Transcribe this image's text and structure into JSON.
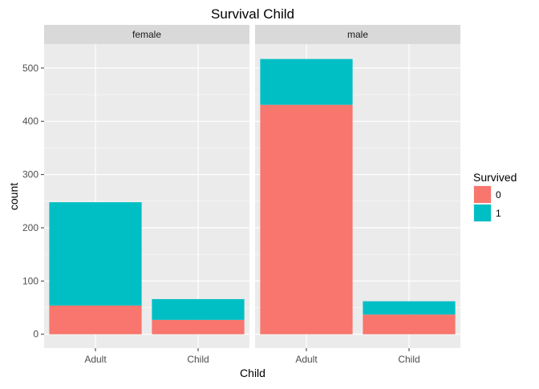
{
  "chart_data": {
    "type": "bar",
    "stacked": true,
    "faceted": true,
    "title": "Survival Child",
    "xlabel": "Child",
    "ylabel": "count",
    "ylim": [
      -26,
      545
    ],
    "yticks": [
      0,
      100,
      200,
      300,
      400,
      500
    ],
    "grid": true,
    "legend": {
      "title": "Survived",
      "position": "right",
      "entries": [
        {
          "label": "0",
          "color": "#F8766D"
        },
        {
          "label": "1",
          "color": "#00BFC4"
        }
      ]
    },
    "categories": [
      "Adult",
      "Child"
    ],
    "facets": [
      {
        "name": "female",
        "series": [
          {
            "name": "0",
            "color": "#F8766D",
            "values": [
              54,
              27
            ]
          },
          {
            "name": "1",
            "color": "#00BFC4",
            "values": [
              194,
              39
            ]
          }
        ]
      },
      {
        "name": "male",
        "series": [
          {
            "name": "0",
            "color": "#F8766D",
            "values": [
              431,
              37
            ]
          },
          {
            "name": "1",
            "color": "#00BFC4",
            "values": [
              86,
              25
            ]
          }
        ]
      }
    ],
    "colors": {
      "panel_bg": "#EBEBEB",
      "strip_bg": "#D9D9D9",
      "grid_major": "#FFFFFF",
      "grid_minor": "#F5F5F5",
      "axis_text": "#4D4D4D",
      "text": "#000000"
    }
  }
}
